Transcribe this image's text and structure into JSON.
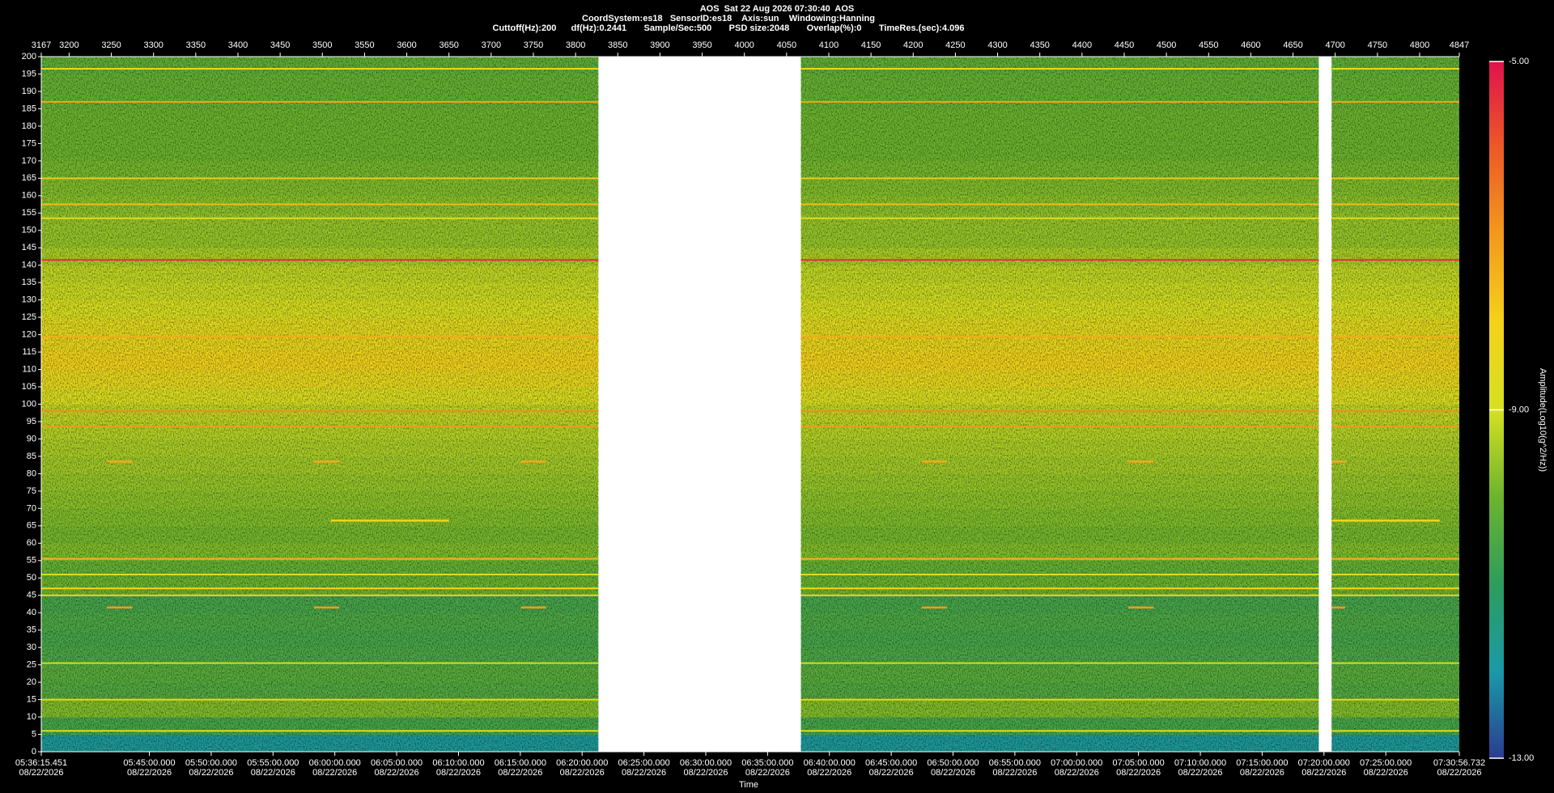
{
  "chart_data": {
    "type": "spectrogram",
    "title": "AOS  Sat 22 Aug 2026 07:30:40  AOS",
    "info": [
      "CoordSystem:es18   SensorID:es18    Axis:sun    Windowing:Hanning",
      "Cuttoff(Hz):200      df(Hz):0.2441       Sample/Sec:500       PSD size:2048       Overlap(%):0       TimeRes.(sec):4.096"
    ],
    "x_label": "Time",
    "colorbar_label": "Amplitude(Log10(g^2/Hz))",
    "xlim": [
      3167,
      4847
    ],
    "x2ticks": [
      3167,
      3200,
      3250,
      3300,
      3350,
      3400,
      3450,
      3500,
      3550,
      3600,
      3650,
      3700,
      3750,
      3800,
      3850,
      3900,
      3950,
      4000,
      4050,
      4100,
      4150,
      4200,
      4250,
      4300,
      4350,
      4400,
      4450,
      4500,
      4550,
      4600,
      4650,
      4700,
      4750,
      4800,
      4847
    ],
    "xticks": [
      {
        "value": 3167,
        "label": "05:36:15.451\n08/22/2026"
      },
      {
        "value": 3295.06,
        "label": "05:45:00.000\n08/22/2026"
      },
      {
        "value": 3368.31,
        "label": "05:50:00.000\n08/22/2026"
      },
      {
        "value": 3441.55,
        "label": "05:55:00.000\n08/22/2026"
      },
      {
        "value": 3514.79,
        "label": "06:00:00.000\n08/22/2026"
      },
      {
        "value": 3588.03,
        "label": "06:05:00.000\n08/22/2026"
      },
      {
        "value": 3661.28,
        "label": "06:10:00.000\n08/22/2026"
      },
      {
        "value": 3734.52,
        "label": "06:15:00.000\n08/22/2026"
      },
      {
        "value": 3807.76,
        "label": "06:20:00.000\n08/22/2026"
      },
      {
        "value": 3881.0,
        "label": "06:25:00.000\n08/22/2026"
      },
      {
        "value": 3954.25,
        "label": "06:30:00.000\n08/22/2026"
      },
      {
        "value": 4027.49,
        "label": "06:35:00.000\n08/22/2026"
      },
      {
        "value": 4100.73,
        "label": "06:40:00.000\n08/22/2026"
      },
      {
        "value": 4173.97,
        "label": "06:45:00.000\n08/22/2026"
      },
      {
        "value": 4247.22,
        "label": "06:50:00.000\n08/22/2026"
      },
      {
        "value": 4320.46,
        "label": "06:55:00.000\n08/22/2026"
      },
      {
        "value": 4393.7,
        "label": "07:00:00.000\n08/22/2026"
      },
      {
        "value": 4466.94,
        "label": "07:05:00.000\n08/22/2026"
      },
      {
        "value": 4540.19,
        "label": "07:10:00.000\n08/22/2026"
      },
      {
        "value": 4613.43,
        "label": "07:15:00.000\n08/22/2026"
      },
      {
        "value": 4686.67,
        "label": "07:20:00.000\n08/22/2026"
      },
      {
        "value": 4759.91,
        "label": "07:25:00.000\n08/22/2026"
      },
      {
        "value": 4847,
        "label": "07:30:56.732\n08/22/2026"
      }
    ],
    "ylim": [
      0,
      200
    ],
    "yticks": [
      0,
      5,
      10,
      15,
      20,
      25,
      30,
      35,
      40,
      45,
      50,
      55,
      60,
      65,
      70,
      75,
      80,
      85,
      90,
      95,
      100,
      105,
      110,
      115,
      120,
      125,
      130,
      135,
      140,
      145,
      150,
      155,
      160,
      165,
      170,
      175,
      180,
      185,
      190,
      195,
      200
    ],
    "clim": [
      -13,
      -5
    ],
    "cticks": [
      {
        "value": -5,
        "label": "-5.00"
      },
      {
        "value": -9,
        "label": "-9.00"
      },
      {
        "value": -13,
        "label": "-13.00"
      }
    ],
    "colormap": [
      "#2a3d8f",
      "#1a9aa8",
      "#2e9c5c",
      "#6cb42e",
      "#d5e021",
      "#f5d21a",
      "#f29a1d",
      "#ec5a26",
      "#e0124c"
    ],
    "segments": [
      [
        3167,
        3827
      ],
      [
        4067,
        4680.5
      ],
      [
        4695.8,
        4847
      ]
    ],
    "profile": {
      "freq_bins": [
        0,
        5,
        10,
        15,
        20,
        25,
        30,
        35,
        40,
        45,
        50,
        55,
        60,
        65,
        70,
        75,
        80,
        85,
        90,
        95,
        100,
        105,
        110,
        115,
        120,
        125,
        130,
        135,
        140,
        145,
        150,
        155,
        160,
        165,
        170,
        175,
        180,
        185,
        190,
        195,
        200
      ],
      "levels": [
        -11.8,
        -10.6,
        -9.8,
        -10.4,
        -10.3,
        -10.5,
        -10.6,
        -10.5,
        -10.6,
        -10.0,
        -10.1,
        -9.8,
        -9.9,
        -9.8,
        -9.7,
        -9.6,
        -9.5,
        -9.4,
        -9.3,
        -9.2,
        -8.8,
        -8.4,
        -8.1,
        -8.3,
        -8.6,
        -8.9,
        -9.1,
        -9.2,
        -9.4,
        -9.6,
        -9.6,
        -9.7,
        -9.8,
        -9.9,
        -10.0,
        -10.0,
        -10.0,
        -10.1,
        -10.1,
        -10.2
      ]
    },
    "tones": [
      {
        "freq": 141.5,
        "level": -5.4
      },
      {
        "freq": 187,
        "level": -7.2
      },
      {
        "freq": 119.5,
        "level": -7.3
      },
      {
        "freq": 98,
        "level": -6.8
      },
      {
        "freq": 93.5,
        "level": -7.0
      },
      {
        "freq": 157.5,
        "level": -7.6
      },
      {
        "freq": 165,
        "level": -7.8
      },
      {
        "freq": 153.5,
        "level": -8.5
      },
      {
        "freq": 196.5,
        "level": -8.5
      },
      {
        "freq": 55.5,
        "level": -7.5
      },
      {
        "freq": 47,
        "level": -8.2
      },
      {
        "freq": 45,
        "level": -8.6
      },
      {
        "freq": 51,
        "level": -8.8
      },
      {
        "freq": 25.5,
        "level": -8.8
      },
      {
        "freq": 15,
        "level": -8.5
      },
      {
        "freq": 6,
        "level": -8.8
      }
    ],
    "events": [
      {
        "freq": 66.5,
        "start": 3510,
        "end": 3650,
        "level": -8.2
      },
      {
        "freq": 66.5,
        "start": 4695.8,
        "end": 4823.8,
        "level": -8.2
      },
      {
        "freq": 41.5,
        "start": 3245,
        "end": 3275,
        "level": -7.0
      },
      {
        "freq": 41.5,
        "start": 3490,
        "end": 3520,
        "level": -7.0
      },
      {
        "freq": 41.5,
        "start": 3735,
        "end": 3765,
        "level": -7.0
      },
      {
        "freq": 41.5,
        "start": 4210,
        "end": 4240,
        "level": -7.0
      },
      {
        "freq": 41.5,
        "start": 4455,
        "end": 4485,
        "level": -7.0
      },
      {
        "freq": 41.5,
        "start": 4695.8,
        "end": 4712,
        "level": -7.0
      },
      {
        "freq": 83.5,
        "start": 3245,
        "end": 3275,
        "level": -7.3
      },
      {
        "freq": 83.5,
        "start": 3490,
        "end": 3520,
        "level": -7.3
      },
      {
        "freq": 83.5,
        "start": 3735,
        "end": 3765,
        "level": -7.3
      },
      {
        "freq": 83.5,
        "start": 4210,
        "end": 4240,
        "level": -7.3
      },
      {
        "freq": 83.5,
        "start": 4455,
        "end": 4485,
        "level": -7.3
      },
      {
        "freq": 83.5,
        "start": 4695.8,
        "end": 4712,
        "level": -7.3
      }
    ]
  }
}
